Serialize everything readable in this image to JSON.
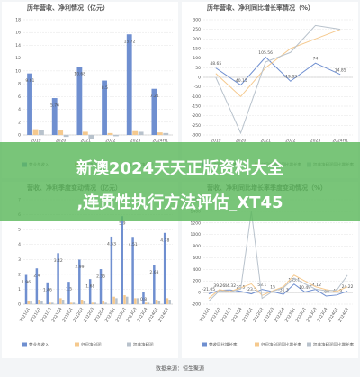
{
  "chart_data": [
    {
      "type": "bar",
      "title": "历年营收、净利情况（亿元）",
      "categories": [
        "2019",
        "2020",
        "2021",
        "2022",
        "2023",
        "2024H1"
      ],
      "series": [
        {
          "name": "营业总收入",
          "color": "#6f8fd0",
          "values": [
            9.61,
            5.76,
            10.68,
            8.5,
            15.72,
            7.21
          ]
        },
        {
          "name": "归母净利润",
          "color": "#f5c98e",
          "values": [
            0.9,
            0.7,
            0.5,
            0.3,
            0.6,
            0.4
          ]
        },
        {
          "name": "扣非净利润",
          "color": "#b8c2cc",
          "values": [
            0.8,
            -0.3,
            -0.6,
            -0.2,
            0.5,
            0.3
          ]
        }
      ],
      "ylim": [
        0,
        18
      ],
      "yticks": [
        0,
        2,
        4,
        6,
        8,
        10,
        12,
        14,
        16,
        18
      ],
      "grid": true
    },
    {
      "type": "line",
      "title": "历年营收、净利同比增长率情况（%）",
      "categories": [
        "2019",
        "2020",
        "2021",
        "2022",
        "2023",
        "2024H1"
      ],
      "series": [
        {
          "name": "营收同比增长率",
          "color": "#6f8fd0",
          "values": [
            48.65,
            -40.15,
            105.56,
            -19.83,
            74.0,
            14.85
          ]
        },
        {
          "name": "归母净利润同比增长率",
          "color": "#f5c98e",
          "values": [
            20,
            -100,
            50,
            150,
            200,
            250
          ]
        },
        {
          "name": "扣非净利润同比增长率",
          "color": "#b8c2cc",
          "values": [
            0,
            -290,
            80,
            130,
            270,
            250
          ]
        }
      ],
      "ylim": [
        -300,
        300
      ],
      "yticks": [
        -300,
        -250,
        -200,
        -150,
        -100,
        -50,
        0,
        50,
        100,
        150,
        200,
        250,
        300
      ],
      "grid": true
    },
    {
      "type": "bar",
      "title": "营收、净利季度变动情况（亿元）",
      "categories": [
        "2021Q1",
        "2021Q2",
        "2021Q3",
        "2021Q4",
        "2022Q1",
        "2022Q2",
        "2022Q3",
        "2022Q4",
        "2023Q1",
        "2023Q2",
        "2023Q3",
        "2023Q4",
        "2024Q1",
        "2024Q2"
      ],
      "series": [
        {
          "name": "营业总收入",
          "color": "#6f8fd0",
          "values": [
            1.96,
            2.4,
            1.46,
            3.42,
            1.5,
            2.99,
            1.68,
            2.35,
            4.53,
            5.9,
            4.51,
            0.8,
            2.63,
            4.78
          ]
        },
        {
          "name": "归母净利润",
          "color": "#f5c98e",
          "values": [
            0.2,
            0.3,
            0.1,
            0.4,
            0.1,
            0.3,
            0.1,
            0.2,
            0.5,
            0.6,
            0.4,
            0.1,
            0.3,
            0.4
          ]
        },
        {
          "name": "扣非净利润",
          "color": "#b8c2cc",
          "values": [
            0.2,
            0.2,
            0.1,
            0.3,
            0.1,
            0.2,
            0.1,
            0.1,
            0.4,
            0.5,
            0.4,
            0.1,
            0.2,
            0.3
          ]
        }
      ],
      "ylim": [
        0,
        7
      ],
      "yticks": [
        0,
        1,
        2,
        3,
        4,
        5,
        6,
        7
      ],
      "grid": true
    },
    {
      "type": "line",
      "title": "营收、净利同比增长率季度变动情况（%）",
      "categories": [
        "2021Q1",
        "2021Q2",
        "2021Q3",
        "2021Q4",
        "2022Q1",
        "2022Q2",
        "2022Q3",
        "2022Q4",
        "2023Q1",
        "2023Q2",
        "2023Q3",
        "2023Q4",
        "2024Q1",
        "2024Q2"
      ],
      "series": [
        {
          "name": "营收同比增长率",
          "color": "#6f8fd0",
          "values": [
            -21.05,
            39.26,
            44.32,
            20.5,
            -23.5,
            53.1,
            15.0,
            -31.3,
            145.1,
            10.49,
            54.12,
            -60.0,
            -41.9,
            24.22
          ]
        },
        {
          "name": "归母净利润同比增长率",
          "color": "#f5c98e",
          "values": [
            -100,
            50,
            20,
            80,
            150,
            -50,
            30,
            100,
            300,
            200,
            100,
            50,
            20,
            100
          ]
        },
        {
          "name": "扣非净利润同比增长率",
          "color": "#b8c2cc",
          "values": [
            -150,
            30,
            10,
            60,
            1400,
            -100,
            20,
            80,
            250,
            150,
            60,
            30,
            40,
            300
          ]
        }
      ],
      "ylim": [
        -200,
        1600
      ],
      "yticks": [
        -200,
        0,
        200,
        400,
        600,
        800,
        1000,
        1200,
        1400,
        1600
      ],
      "grid": true
    }
  ],
  "banner": {
    "line1": "新澳2024天天正版资料大全",
    "line2": ",连贯性执行方法评估_XT45"
  },
  "footer": "数据来源：恒生聚源"
}
